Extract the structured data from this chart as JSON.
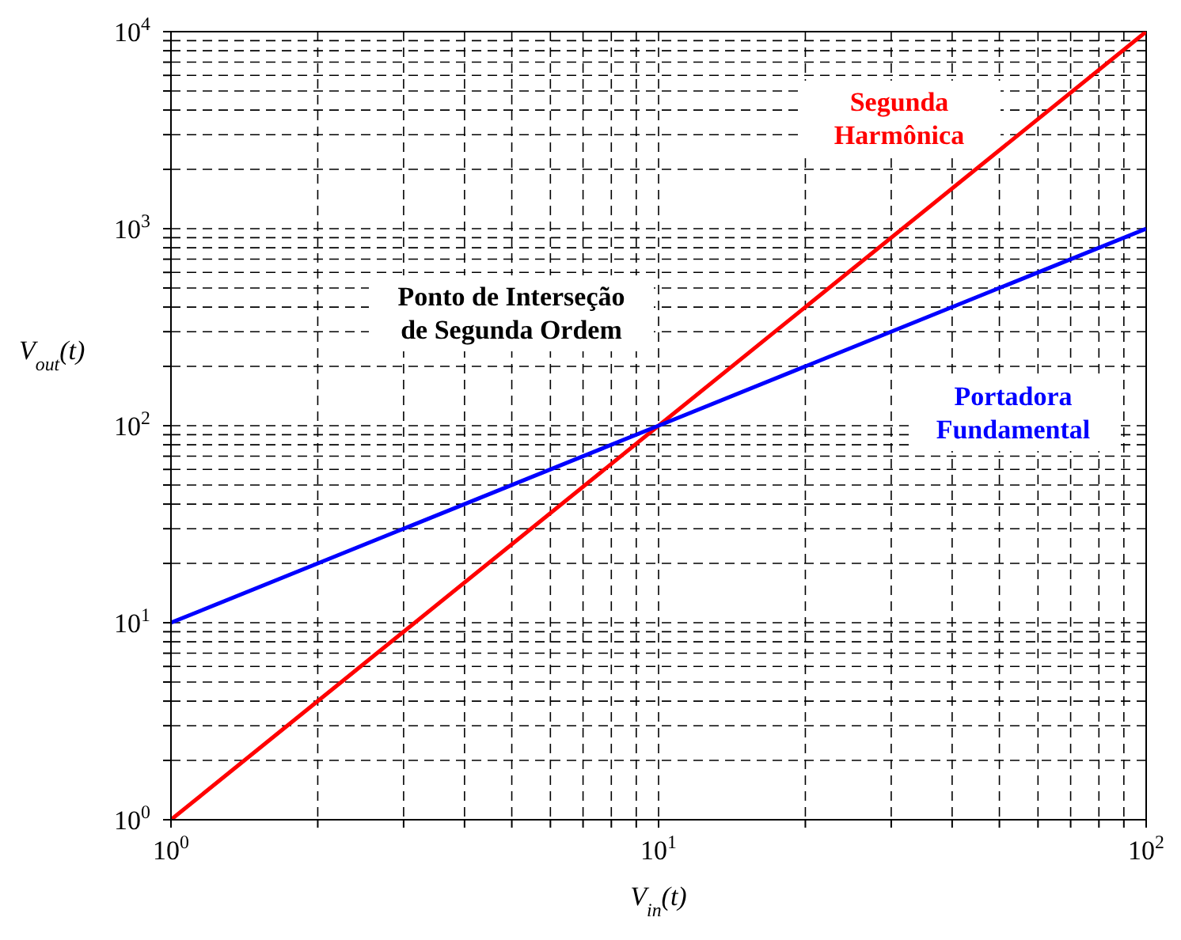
{
  "chart_data": {
    "type": "line",
    "xlabel": "V$_{in}$(t)",
    "ylabel": "V$_{out}$(t)",
    "log": "xy",
    "grid": true,
    "marker": "none",
    "line_style": "solid",
    "annotations": [
      "Ponto de Interseção de Segunda Ordem"
    ],
    "x": [
      1,
      10,
      100
    ],
    "series": [
      {
        "name": "Segunda Harmônica",
        "color": "#ff0000",
        "values": [
          1,
          100,
          10000
        ]
      },
      {
        "name": "Portadora Fundamental",
        "color": "#0000ff",
        "values": [
          10,
          100,
          1000
        ]
      }
    ],
    "xlim": [
      1,
      100
    ],
    "ylim": [
      1,
      10000
    ],
    "xticks": [
      {
        "value": 1,
        "label": "10$^{0}$"
      },
      {
        "value": 2,
        "label": null
      },
      {
        "value": 3,
        "label": null
      },
      {
        "value": 4,
        "label": null
      },
      {
        "value": 5,
        "label": null
      },
      {
        "value": 6,
        "label": null
      },
      {
        "value": 7,
        "label": null
      },
      {
        "value": 8,
        "label": null
      },
      {
        "value": 9,
        "label": null
      },
      {
        "value": 10,
        "label": "10$^{1}$"
      },
      {
        "value": 20,
        "label": null
      },
      {
        "value": 30,
        "label": null
      },
      {
        "value": 40,
        "label": null
      },
      {
        "value": 50,
        "label": null
      },
      {
        "value": 60,
        "label": null
      },
      {
        "value": 70,
        "label": null
      },
      {
        "value": 80,
        "label": null
      },
      {
        "value": 90,
        "label": null
      },
      {
        "value": 100,
        "label": "10$^{2}$"
      }
    ],
    "yticks": [
      {
        "value": 1,
        "label": "10$^{0}$"
      },
      {
        "value": 2,
        "label": null
      },
      {
        "value": 3,
        "label": null
      },
      {
        "value": 4,
        "label": null
      },
      {
        "value": 5,
        "label": null
      },
      {
        "value": 6,
        "label": null
      },
      {
        "value": 7,
        "label": null
      },
      {
        "value": 8,
        "label": null
      },
      {
        "value": 9,
        "label": null
      },
      {
        "value": 10,
        "label": "10$^{1}$"
      },
      {
        "value": 20,
        "label": null
      },
      {
        "value": 30,
        "label": null
      },
      {
        "value": 40,
        "label": null
      },
      {
        "value": 50,
        "label": null
      },
      {
        "value": 60,
        "label": null
      },
      {
        "value": 70,
        "label": null
      },
      {
        "value": 80,
        "label": null
      },
      {
        "value": 90,
        "label": null
      },
      {
        "value": 100,
        "label": "10$^{2}$"
      },
      {
        "value": 200,
        "label": null
      },
      {
        "value": 300,
        "label": null
      },
      {
        "value": 400,
        "label": null
      },
      {
        "value": 500,
        "label": null
      },
      {
        "value": 600,
        "label": null
      },
      {
        "value": 700,
        "label": null
      },
      {
        "value": 800,
        "label": null
      },
      {
        "value": 900,
        "label": null
      },
      {
        "value": 1000,
        "label": "10$^{3}$"
      },
      {
        "value": 2000,
        "label": null
      },
      {
        "value": 3000,
        "label": null
      },
      {
        "value": 4000,
        "label": null
      },
      {
        "value": 5000,
        "label": null
      },
      {
        "value": 6000,
        "label": null
      },
      {
        "value": 7000,
        "label": null
      },
      {
        "value": 8000,
        "label": null
      },
      {
        "value": 9000,
        "label": null
      },
      {
        "value": 10000,
        "label": "10$^{4}$"
      }
    ]
  }
}
